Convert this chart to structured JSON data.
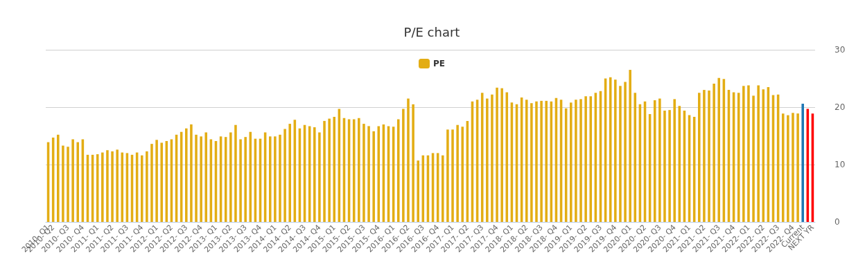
{
  "chart_data": {
    "type": "bar",
    "title": "P/E chart",
    "categories": [
      "2010- Q1",
      "2010- Q2",
      null,
      null,
      "2010- Q3",
      null,
      null,
      "2010- Q4",
      null,
      null,
      "2011- Q1",
      null,
      null,
      "2011- Q2",
      null,
      null,
      "2011- Q3",
      null,
      null,
      "2011- Q4",
      null,
      null,
      "2012- Q1",
      null,
      null,
      "2012- Q2",
      null,
      null,
      "2012- Q3",
      null,
      null,
      "2012- Q4",
      null,
      null,
      "2013- Q1",
      null,
      null,
      "2013- Q2",
      null,
      null,
      "2013- Q3",
      null,
      null,
      "2013- Q4",
      null,
      null,
      "2014- Q1",
      null,
      null,
      "2014- Q2",
      null,
      null,
      "2014- Q3",
      null,
      null,
      "2014- Q4",
      null,
      null,
      "2015- Q1",
      null,
      null,
      "2015- Q2",
      null,
      null,
      "2015- Q3",
      null,
      null,
      "2015- Q4",
      null,
      null,
      "2016- Q1",
      null,
      null,
      "2016- Q2",
      null,
      null,
      "2016- Q3",
      null,
      null,
      "2016- Q4",
      null,
      null,
      "2017- Q1",
      null,
      null,
      "2017- Q2",
      null,
      null,
      "2017- Q3",
      null,
      null,
      "2017- Q4",
      null,
      null,
      "2018- Q1",
      null,
      null,
      "2018- Q2",
      null,
      null,
      "2018- Q3",
      null,
      null,
      "2018- Q4",
      null,
      null,
      "2019- Q1",
      null,
      null,
      "2019- Q2",
      null,
      null,
      "2019- Q3",
      null,
      null,
      "2019- Q4",
      null,
      null,
      "2020- Q1",
      null,
      null,
      "2020- Q2",
      null,
      null,
      "2020- Q3",
      null,
      null,
      "2020- Q4",
      null,
      null,
      "2021- Q1",
      null,
      null,
      "2021- Q2",
      null,
      null,
      "2021- Q3",
      null,
      null,
      "2021- Q4",
      null,
      null,
      "2022- Q1",
      null,
      null,
      "2022- Q2",
      null,
      null,
      "2022- Q3",
      null,
      null,
      "2022- Q4",
      null,
      "Current",
      null,
      "NEXT YR"
    ],
    "series": [
      {
        "name": "PE",
        "color": "#e3ad14",
        "values": [
          13.9,
          14.7,
          15.2,
          13.3,
          13.1,
          14.4,
          13.9,
          14.4,
          11.7,
          11.7,
          11.8,
          12.1,
          12.5,
          12.3,
          12.6,
          12.1,
          12.0,
          11.7,
          12.1,
          11.6,
          12.3,
          13.6,
          14.3,
          13.8,
          14.1,
          14.4,
          15.2,
          15.7,
          16.3,
          17.0,
          15.2,
          14.9,
          15.6,
          14.4,
          14.1,
          14.9,
          14.8,
          15.6,
          16.9,
          14.4,
          14.8,
          15.7,
          14.5,
          14.5,
          15.6,
          14.9,
          14.9,
          15.2,
          16.2,
          17.1,
          17.8,
          16.3,
          16.9,
          16.7,
          16.5,
          15.6,
          17.6,
          18.0,
          18.3,
          19.7,
          18.1,
          17.9,
          17.9,
          18.1,
          17.1,
          16.7,
          15.8,
          16.7,
          17.0,
          16.7,
          16.6,
          17.9,
          19.7,
          21.5,
          20.5,
          10.7,
          11.6,
          11.6,
          12.0,
          12.0,
          11.6,
          16.1,
          16.1,
          16.9,
          16.6,
          17.6,
          21.0,
          21.3,
          22.5,
          21.5,
          22.2,
          23.4,
          23.3,
          22.6,
          20.8,
          20.5,
          21.7,
          21.3,
          20.7,
          21.0,
          21.1,
          21.1,
          21.0,
          21.6,
          21.3,
          19.8,
          20.8,
          21.3,
          21.4,
          21.9,
          21.9,
          22.5,
          22.8,
          25.0,
          25.2,
          24.8,
          23.7,
          24.4,
          26.5,
          22.5,
          20.5,
          21.0,
          18.8,
          21.2,
          21.5,
          19.4,
          19.5,
          21.4,
          20.2,
          19.4,
          18.6,
          18.3,
          22.5,
          23.0,
          22.9,
          24.1,
          25.1,
          24.9,
          23.0,
          22.6,
          22.5,
          23.7,
          23.8,
          22.0,
          23.8,
          23.1,
          23.5,
          22.1,
          22.2,
          18.9,
          18.6,
          19.0,
          18.9,
          null,
          null,
          null
        ]
      },
      {
        "color": "#1f77b4",
        "values": [
          null,
          null,
          null,
          null,
          null,
          null,
          null,
          null,
          null,
          null,
          null,
          null,
          null,
          null,
          null,
          null,
          null,
          null,
          null,
          null,
          null,
          null,
          null,
          null,
          null,
          null,
          null,
          null,
          null,
          null,
          null,
          null,
          null,
          null,
          null,
          null,
          null,
          null,
          null,
          null,
          null,
          null,
          null,
          null,
          null,
          null,
          null,
          null,
          null,
          null,
          null,
          null,
          null,
          null,
          null,
          null,
          null,
          null,
          null,
          null,
          null,
          null,
          null,
          null,
          null,
          null,
          null,
          null,
          null,
          null,
          null,
          null,
          null,
          null,
          null,
          null,
          null,
          null,
          null,
          null,
          null,
          null,
          null,
          null,
          null,
          null,
          null,
          null,
          null,
          null,
          null,
          null,
          null,
          null,
          null,
          null,
          null,
          null,
          null,
          null,
          null,
          null,
          null,
          null,
          null,
          null,
          null,
          null,
          null,
          null,
          null,
          null,
          null,
          null,
          null,
          null,
          null,
          null,
          null,
          null,
          null,
          null,
          null,
          null,
          null,
          null,
          null,
          null,
          null,
          null,
          null,
          null,
          null,
          null,
          null,
          null,
          null,
          null,
          null,
          null,
          null,
          null,
          null,
          null,
          null,
          null,
          null,
          null,
          null,
          null,
          null,
          null,
          null,
          20.6,
          null,
          null
        ]
      },
      {
        "color": "#ff0000",
        "values": [
          null,
          null,
          null,
          null,
          null,
          null,
          null,
          null,
          null,
          null,
          null,
          null,
          null,
          null,
          null,
          null,
          null,
          null,
          null,
          null,
          null,
          null,
          null,
          null,
          null,
          null,
          null,
          null,
          null,
          null,
          null,
          null,
          null,
          null,
          null,
          null,
          null,
          null,
          null,
          null,
          null,
          null,
          null,
          null,
          null,
          null,
          null,
          null,
          null,
          null,
          null,
          null,
          null,
          null,
          null,
          null,
          null,
          null,
          null,
          null,
          null,
          null,
          null,
          null,
          null,
          null,
          null,
          null,
          null,
          null,
          null,
          null,
          null,
          null,
          null,
          null,
          null,
          null,
          null,
          null,
          null,
          null,
          null,
          null,
          null,
          null,
          null,
          null,
          null,
          null,
          null,
          null,
          null,
          null,
          null,
          null,
          null,
          null,
          null,
          null,
          null,
          null,
          null,
          null,
          null,
          null,
          null,
          null,
          null,
          null,
          null,
          null,
          null,
          null,
          null,
          null,
          null,
          null,
          null,
          null,
          null,
          null,
          null,
          null,
          null,
          null,
          null,
          null,
          null,
          null,
          null,
          null,
          null,
          null,
          null,
          null,
          null,
          null,
          null,
          null,
          null,
          null,
          null,
          null,
          null,
          null,
          null,
          null,
          null,
          null,
          null,
          null,
          null,
          null,
          19.7,
          18.9
        ]
      }
    ],
    "ylim": [
      0,
      30
    ],
    "yticks": [
      0,
      10,
      20,
      30
    ],
    "grid": "y",
    "legend": "top"
  }
}
